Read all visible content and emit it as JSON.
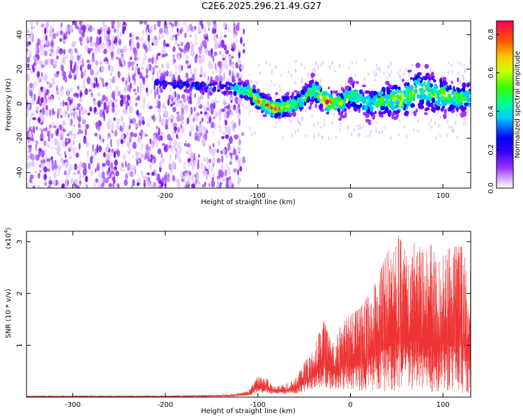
{
  "title": "C2E6.2025.296.21.49.G27",
  "colors": {
    "snr_line": "#ee3333",
    "axis": "#000000",
    "background": "#ffffff"
  },
  "chart_data": [
    {
      "id": "spectrogram",
      "type": "heatmap",
      "title": "C2E6.2025.296.21.49.G27",
      "xlabel": "Height of straight line (km)",
      "ylabel": "Frequency (Hz)",
      "xlim": [
        -350,
        130
      ],
      "ylim": [
        -49,
        48
      ],
      "xticks": [
        -300,
        -200,
        -100,
        0,
        100
      ],
      "xtick_labels": [
        "-300",
        "-200",
        "-100",
        "0",
        "100"
      ],
      "yticks": [
        -40,
        -20,
        0,
        20,
        40
      ],
      "ytick_labels": [
        "-40",
        "-20",
        "0",
        "20",
        "40"
      ],
      "colorbar": {
        "label": "Normalized spectral amplitude",
        "range": [
          0,
          0.87
        ],
        "ticks": [
          0.0,
          0.2,
          0.4,
          0.6,
          0.8
        ],
        "tick_labels": [
          "0.0",
          "0.2",
          "0.4",
          "0.6",
          "0.8"
        ],
        "colormap": [
          "#ffffff",
          "#cc99ff",
          "#7a00ff",
          "#0000ff",
          "#00ffff",
          "#00ff00",
          "#ffff00",
          "#ff8800",
          "#ff0000"
        ]
      },
      "noise_region_x": [
        -350,
        -115
      ],
      "signal_band": [
        {
          "x": -205,
          "center": 12,
          "width": 4,
          "peak": 0.25
        },
        {
          "x": -160,
          "center": 10,
          "width": 4,
          "peak": 0.3
        },
        {
          "x": -130,
          "center": 9,
          "width": 5,
          "peak": 0.35
        },
        {
          "x": -110,
          "center": 7,
          "width": 6,
          "peak": 0.6
        },
        {
          "x": -100,
          "center": 2,
          "width": 6,
          "peak": 0.8
        },
        {
          "x": -85,
          "center": -3,
          "width": 7,
          "peak": 0.75
        },
        {
          "x": -70,
          "center": -2,
          "width": 7,
          "peak": 0.65
        },
        {
          "x": -55,
          "center": 1,
          "width": 7,
          "peak": 0.5
        },
        {
          "x": -40,
          "center": 8,
          "width": 8,
          "peak": 0.55
        },
        {
          "x": -25,
          "center": 1,
          "width": 8,
          "peak": 0.8
        },
        {
          "x": -10,
          "center": 0,
          "width": 8,
          "peak": 0.55
        },
        {
          "x": 0,
          "center": 5,
          "width": 9,
          "peak": 0.5
        },
        {
          "x": 20,
          "center": 0,
          "width": 10,
          "peak": 0.45
        },
        {
          "x": 40,
          "center": 2,
          "width": 11,
          "peak": 0.55
        },
        {
          "x": 60,
          "center": 3,
          "width": 12,
          "peak": 0.6
        },
        {
          "x": 75,
          "center": 8,
          "width": 14,
          "peak": 0.5
        },
        {
          "x": 100,
          "center": 5,
          "width": 12,
          "peak": 0.55
        },
        {
          "x": 120,
          "center": 3,
          "width": 10,
          "peak": 0.5
        }
      ]
    },
    {
      "id": "snr",
      "type": "line",
      "xlabel": "Height of straight line (km)",
      "ylabel": "SNR (10 * v/v)",
      "y_multiplier_label": "(x10",
      "y_multiplier_exp": "4",
      "y_multiplier_close": ")",
      "xlim": [
        -350,
        130
      ],
      "ylim": [
        0,
        3.2
      ],
      "xticks": [
        -300,
        -200,
        -100,
        0,
        100
      ],
      "xtick_labels": [
        "-300",
        "-200",
        "-100",
        "0",
        "100"
      ],
      "yticks": [
        1,
        2,
        3
      ],
      "ytick_labels": [
        "1",
        "2",
        "3"
      ],
      "envelope": {
        "x": [
          -350,
          -200,
          -130,
          -110,
          -100,
          -90,
          -80,
          -70,
          -60,
          -50,
          -40,
          -30,
          -20,
          -10,
          0,
          10,
          20,
          30,
          40,
          50,
          60,
          70,
          80,
          90,
          100,
          110,
          120,
          130
        ],
        "max": [
          0.03,
          0.03,
          0.05,
          0.12,
          0.4,
          0.35,
          0.2,
          0.25,
          0.35,
          0.65,
          0.9,
          1.55,
          1.0,
          1.4,
          1.6,
          1.7,
          2.0,
          2.3,
          2.8,
          3.2,
          2.8,
          3.0,
          2.8,
          3.0,
          2.8,
          2.9,
          2.9,
          2.4
        ],
        "min": [
          0.0,
          0.0,
          0.01,
          0.03,
          0.08,
          0.06,
          0.05,
          0.05,
          0.06,
          0.1,
          0.15,
          0.2,
          0.15,
          0.15,
          0.15,
          0.12,
          0.12,
          0.1,
          0.1,
          0.1,
          0.1,
          0.1,
          0.1,
          0.1,
          0.1,
          0.08,
          0.08,
          0.08
        ]
      }
    }
  ]
}
